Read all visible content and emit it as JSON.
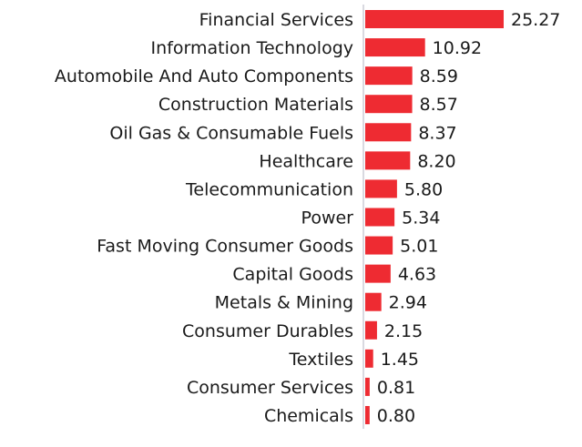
{
  "chart_data": {
    "type": "bar",
    "orientation": "horizontal",
    "categories": [
      "Financial Services",
      "Information Technology",
      "Automobile And Auto Components",
      "Construction Materials",
      "Oil Gas & Consumable Fuels",
      "Healthcare",
      "Telecommunication",
      "Power",
      "Fast Moving Consumer Goods",
      "Capital Goods",
      "Metals & Mining",
      "Consumer Durables",
      "Textiles",
      "Consumer Services",
      "Chemicals"
    ],
    "values": [
      25.27,
      10.92,
      8.59,
      8.57,
      8.37,
      8.2,
      5.8,
      5.34,
      5.01,
      4.63,
      2.94,
      2.15,
      1.45,
      0.81,
      0.8
    ],
    "value_labels": [
      "25.27",
      "10.92",
      "8.59",
      "8.57",
      "8.37",
      "8.20",
      "5.80",
      "5.34",
      "5.01",
      "4.63",
      "2.94",
      "2.15",
      "1.45",
      "0.81",
      "0.80"
    ],
    "title": "",
    "xlabel": "",
    "ylabel": "",
    "grid": false,
    "bar_color": "#ee2b32",
    "axis_color": "#d9d9e0"
  }
}
